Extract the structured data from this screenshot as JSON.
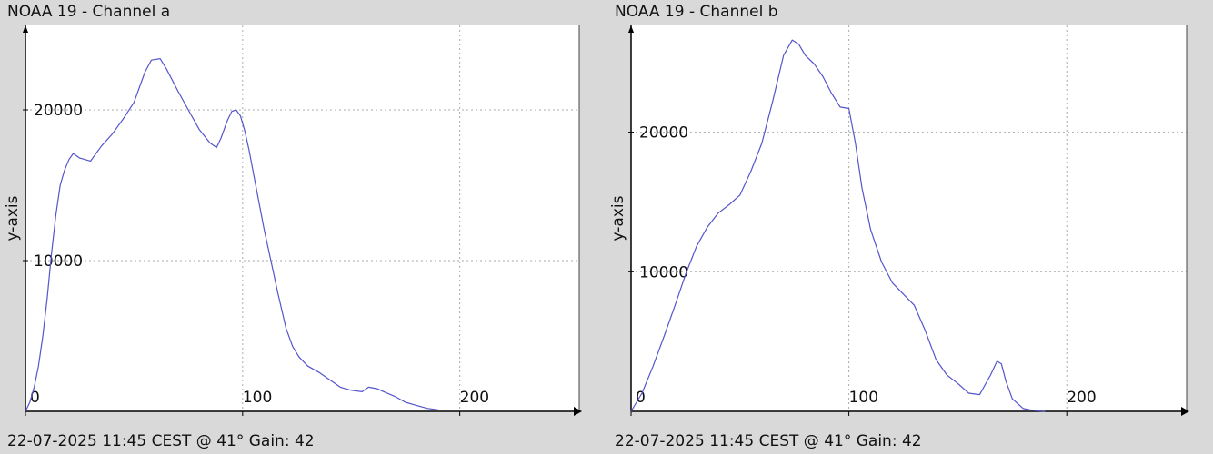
{
  "panels": [
    {
      "title": "NOAA 19 - Channel a",
      "footer": "22-07-2025 11:45 CEST @ 41° Gain: 42"
    },
    {
      "title": "NOAA 19 - Channel b",
      "footer": "22-07-2025 11:45 CEST @ 41° Gain: 42"
    }
  ],
  "colors": {
    "line": "#5555cc",
    "background": "#ffffff",
    "grid": "#aaaaaa",
    "axis": "#000000"
  },
  "chart_data": [
    {
      "type": "line",
      "title": "NOAA 19 - Channel a",
      "xlabel": "",
      "ylabel": "y-axis",
      "xlim": [
        0,
        255
      ],
      "ylim": [
        0,
        25000
      ],
      "x_ticks": [
        0,
        100,
        200
      ],
      "y_ticks": [
        10000,
        20000
      ],
      "grid": true,
      "series": [
        {
          "x": [
            0,
            2,
            4,
            6,
            8,
            10,
            12,
            14,
            16,
            18,
            20,
            22,
            25,
            30,
            35,
            40,
            45,
            50,
            55,
            58,
            62,
            65,
            70,
            75,
            80,
            85,
            88,
            90,
            93,
            95,
            97,
            99,
            101,
            103,
            106,
            110,
            113,
            116,
            120,
            123,
            126,
            130,
            135,
            140,
            145,
            150,
            155,
            158,
            162,
            165,
            170,
            175,
            180,
            185,
            190
          ],
          "y": [
            0,
            600,
            1600,
            3000,
            5000,
            7500,
            10500,
            13000,
            15000,
            16000,
            16700,
            17100,
            16800,
            16600,
            17600,
            18400,
            19400,
            20500,
            22500,
            23300,
            23400,
            22700,
            21300,
            20000,
            18700,
            17800,
            17500,
            18100,
            19300,
            19900,
            20000,
            19600,
            18600,
            17300,
            15000,
            12000,
            10000,
            8000,
            5500,
            4300,
            3600,
            3000,
            2600,
            2100,
            1600,
            1400,
            1300,
            1600,
            1500,
            1300,
            1000,
            600,
            400,
            200,
            100
          ]
        }
      ]
    },
    {
      "type": "line",
      "title": "NOAA 19 - Channel b",
      "xlabel": "",
      "ylabel": "y-axis",
      "xlim": [
        0,
        255
      ],
      "ylim": [
        0,
        27000
      ],
      "x_ticks": [
        0,
        100,
        200
      ],
      "y_ticks": [
        10000,
        20000
      ],
      "grid": true,
      "series": [
        {
          "x": [
            0,
            5,
            10,
            15,
            20,
            25,
            30,
            35,
            40,
            45,
            50,
            55,
            60,
            65,
            70,
            74,
            77,
            80,
            84,
            88,
            92,
            96,
            100,
            103,
            106,
            110,
            115,
            120,
            125,
            130,
            135,
            140,
            145,
            150,
            155,
            160,
            165,
            168,
            170,
            172,
            175,
            180,
            185,
            190
          ],
          "y": [
            0,
            1300,
            3200,
            5300,
            7500,
            9800,
            11800,
            13200,
            14200,
            14800,
            15500,
            17200,
            19200,
            22200,
            25500,
            26600,
            26300,
            25500,
            24900,
            24000,
            22800,
            21800,
            21700,
            19200,
            16000,
            13000,
            10700,
            9200,
            8400,
            7600,
            5800,
            3700,
            2600,
            2000,
            1300,
            1200,
            2600,
            3600,
            3400,
            2200,
            900,
            200,
            50,
            0
          ]
        }
      ]
    }
  ]
}
